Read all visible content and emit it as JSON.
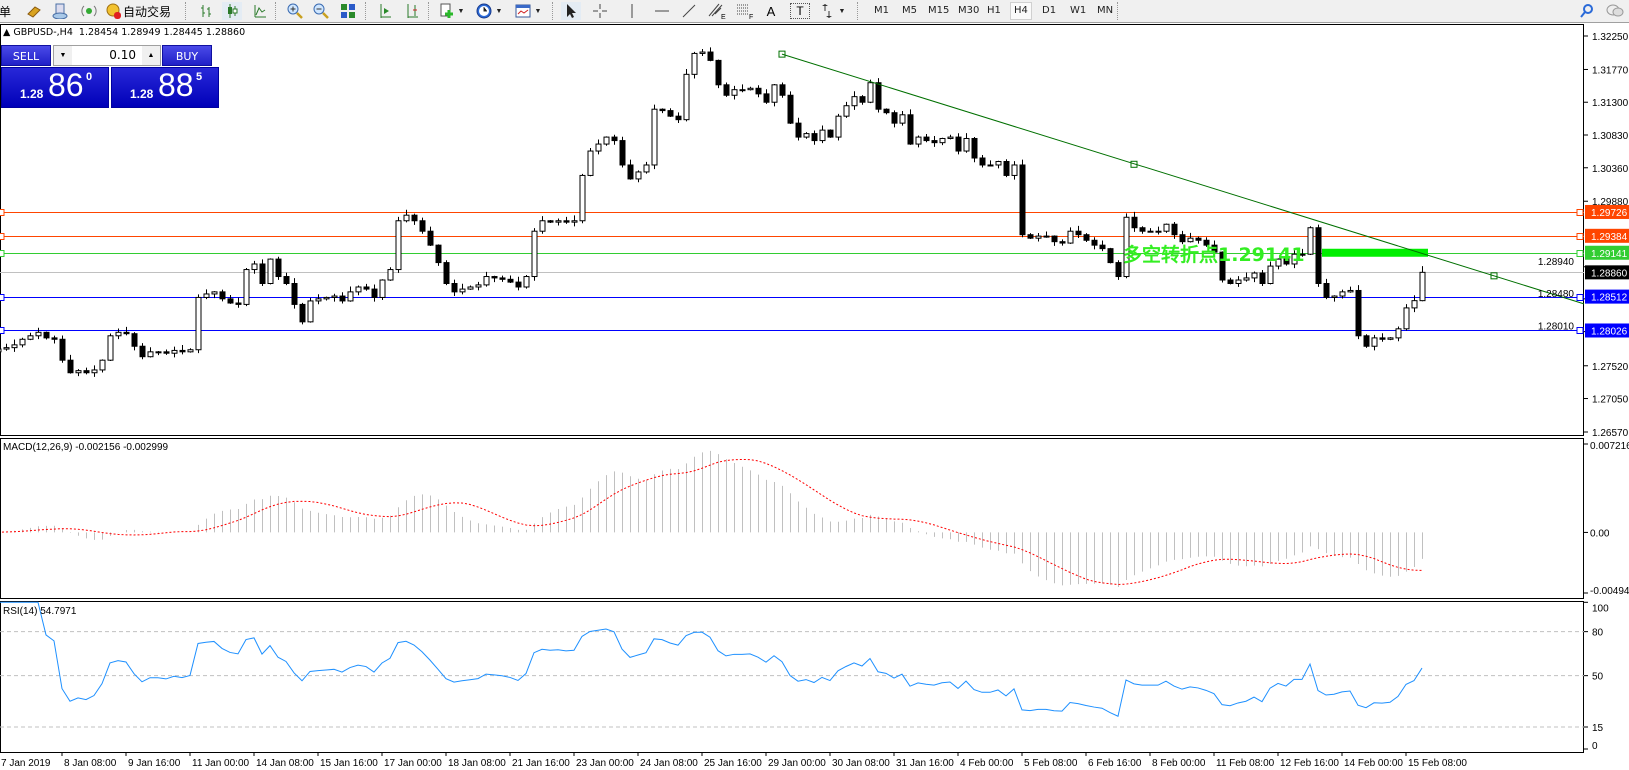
{
  "toolbar": {
    "cut_text": "单",
    "autotrading_label": "自动交易",
    "icons": [
      "gold-bars-icon",
      "cloud-server-icon",
      "signals-icon",
      "autotrading-icon",
      "bar-chart-icon",
      "candlestick-icon",
      "line-chart-icon",
      "zoom-in-icon",
      "zoom-out-icon",
      "tile-windows-icon",
      "autoscroll-icon",
      "chart-shift-icon",
      "new-indicator-icon",
      "periods-clock-icon",
      "templates-icon",
      "cursor-icon",
      "crosshair-icon",
      "vertical-line-icon",
      "horizontal-line-icon",
      "trendline-icon",
      "fibonacci-icon",
      "fibonacci-fan-icon",
      "text-icon",
      "text-label-icon",
      "arrows-icon",
      "search-icon",
      "chat-icon"
    ],
    "fib_letter": "E",
    "fibfan_letter": "F",
    "text_letter": "A",
    "label_letter": "T",
    "timeframes": [
      "M1",
      "M5",
      "M15",
      "M30",
      "H1",
      "H4",
      "D1",
      "W1",
      "MN"
    ],
    "active_timeframe": "H4"
  },
  "chart": {
    "symbol": "GBPUSD-,H4",
    "ohlc_text": "1.28454 1.28949 1.28445 1.28860",
    "last_bar": {
      "open": 1.28454,
      "high": 1.28949,
      "low": 1.28445,
      "close": 1.2886
    }
  },
  "trade_panel": {
    "sell_label": "SELL",
    "buy_label": "BUY",
    "lot": "0.10",
    "sell": {
      "prefix": "1.28",
      "big": "86",
      "sup": "0"
    },
    "buy": {
      "prefix": "1.28",
      "big": "88",
      "sup": "5"
    }
  },
  "annotation": {
    "text": "多空转折点1.29141",
    "level": 1.29141,
    "color": "#22ee22"
  },
  "chart_data": [
    {
      "type": "candlestick",
      "title": "GBPUSD-,H4",
      "ylim": [
        1.2657,
        1.3225
      ],
      "y_ticks": [
        "1.32250",
        "1.31770",
        "1.31300",
        "1.30830",
        "1.30360",
        "1.29880",
        "1.28940",
        "1.28480",
        "1.28010",
        "1.27520",
        "1.27050",
        "1.26570"
      ],
      "x_ticks": [
        "7 Jan 2019",
        "8 Jan 08:00",
        "9 Jan 16:00",
        "11 Jan 00:00",
        "14 Jan 08:00",
        "15 Jan 16:00",
        "17 Jan 00:00",
        "18 Jan 08:00",
        "21 Jan 16:00",
        "23 Jan 00:00",
        "24 Jan 08:00",
        "25 Jan 16:00",
        "29 Jan 00:00",
        "30 Jan 08:00",
        "31 Jan 16:00",
        "4 Feb 00:00",
        "5 Feb 08:00",
        "6 Feb 16:00",
        "8 Feb 00:00",
        "11 Feb 08:00",
        "12 Feb 16:00",
        "14 Feb 00:00",
        "15 Feb 08:00"
      ],
      "closes": [
        1.2772,
        1.2776,
        1.2778,
        1.2782,
        1.279,
        1.2795,
        1.28,
        1.2792,
        1.279,
        1.276,
        1.2742,
        1.2745,
        1.2742,
        1.2746,
        1.276,
        1.2795,
        1.28,
        1.2798,
        1.278,
        1.2765,
        1.2772,
        1.2772,
        1.277,
        1.2774,
        1.2772,
        1.2775,
        1.285,
        1.2855,
        1.2858,
        1.2848,
        1.2842,
        1.284,
        1.289,
        1.2898,
        1.287,
        1.2905,
        1.288,
        1.287,
        1.284,
        1.2815,
        1.2845,
        1.2848,
        1.285,
        1.2852,
        1.2845,
        1.2858,
        1.2865,
        1.2862,
        1.285,
        1.2875,
        1.289,
        1.296,
        1.2968,
        1.296,
        1.2945,
        1.2925,
        1.29,
        1.287,
        1.2858,
        1.2862,
        1.2865,
        1.2868,
        1.288,
        1.2878,
        1.2876,
        1.2872,
        1.2865,
        1.288,
        1.2945,
        1.296,
        1.2958,
        1.296,
        1.2958,
        1.296,
        1.3025,
        1.306,
        1.307,
        1.308,
        1.3075,
        1.304,
        1.302,
        1.303,
        1.304,
        1.312,
        1.3118,
        1.311,
        1.3105,
        1.317,
        1.32,
        1.3202,
        1.319,
        1.3155,
        1.314,
        1.3148,
        1.3148,
        1.315,
        1.3142,
        1.313,
        1.3155,
        1.314,
        1.31,
        1.308,
        1.3085,
        1.3075,
        1.309,
        1.308,
        1.311,
        1.3125,
        1.3138,
        1.313,
        1.3158,
        1.312,
        1.3115,
        1.31,
        1.3112,
        1.307,
        1.308,
        1.3075,
        1.3072,
        1.3078,
        1.308,
        1.306,
        1.3078,
        1.305,
        1.304,
        1.304,
        1.3045,
        1.3025,
        1.304,
        1.294,
        1.2935,
        1.2938,
        1.2938,
        1.293,
        1.2928,
        1.2945,
        1.294,
        1.2932,
        1.2925,
        1.292,
        1.29,
        1.288,
        1.2965,
        1.295,
        1.2945,
        1.2945,
        1.2945,
        1.2955,
        1.294,
        1.293,
        1.2935,
        1.2932,
        1.2925,
        1.2915,
        1.2875,
        1.287,
        1.2875,
        1.2878,
        1.2885,
        1.287,
        1.2895,
        1.2905,
        1.2898,
        1.2912,
        1.2912,
        1.295,
        1.287,
        1.285,
        1.2852,
        1.2858,
        1.286,
        1.2795,
        1.278,
        1.2792,
        1.279,
        1.2792,
        1.2805,
        1.2835,
        1.28454,
        1.2886
      ],
      "horizontal_lines": [
        {
          "price": 1.29726,
          "label": "1.29726",
          "color": "#ff4500"
        },
        {
          "price": 1.29384,
          "label": "1.29384",
          "color": "#ff4500"
        },
        {
          "price": 1.29141,
          "label": "1.29141",
          "color": "#32cd32"
        },
        {
          "price": 1.2886,
          "label": "1.28860",
          "color": "#c0c0c0",
          "tag_color": "#000000"
        },
        {
          "price": 1.28512,
          "label": "1.28512",
          "color": "#0000ff"
        },
        {
          "price": 1.28026,
          "label": "1.28026",
          "color": "#0000ff"
        }
      ],
      "trendline": {
        "color": "#007000",
        "points": [
          {
            "bar": 99,
            "price": 1.3199
          },
          {
            "bar": 143,
            "price": 1.3041
          },
          {
            "bar": 188,
            "price": 1.2881
          }
        ]
      },
      "bull_color": "#ffffff",
      "bear_color": "#000000"
    },
    {
      "type": "histogram+line",
      "title": "MACD(12,26,9) -0.002156 -0.002999",
      "ylim": [
        -0.004943,
        0.007216
      ],
      "y_ticks": [
        "0.007216",
        "0.00",
        "-0.004943"
      ],
      "histogram_color": "#c0c0c0",
      "signal_color": "#ff0000"
    },
    {
      "type": "line",
      "title": "RSI(14) 54.7971",
      "ylim": [
        0,
        100
      ],
      "y_ticks": [
        "100",
        "80",
        "50",
        "15",
        "0"
      ],
      "levels": [
        80,
        50,
        15
      ],
      "line_color": "#1e90ff"
    }
  ]
}
